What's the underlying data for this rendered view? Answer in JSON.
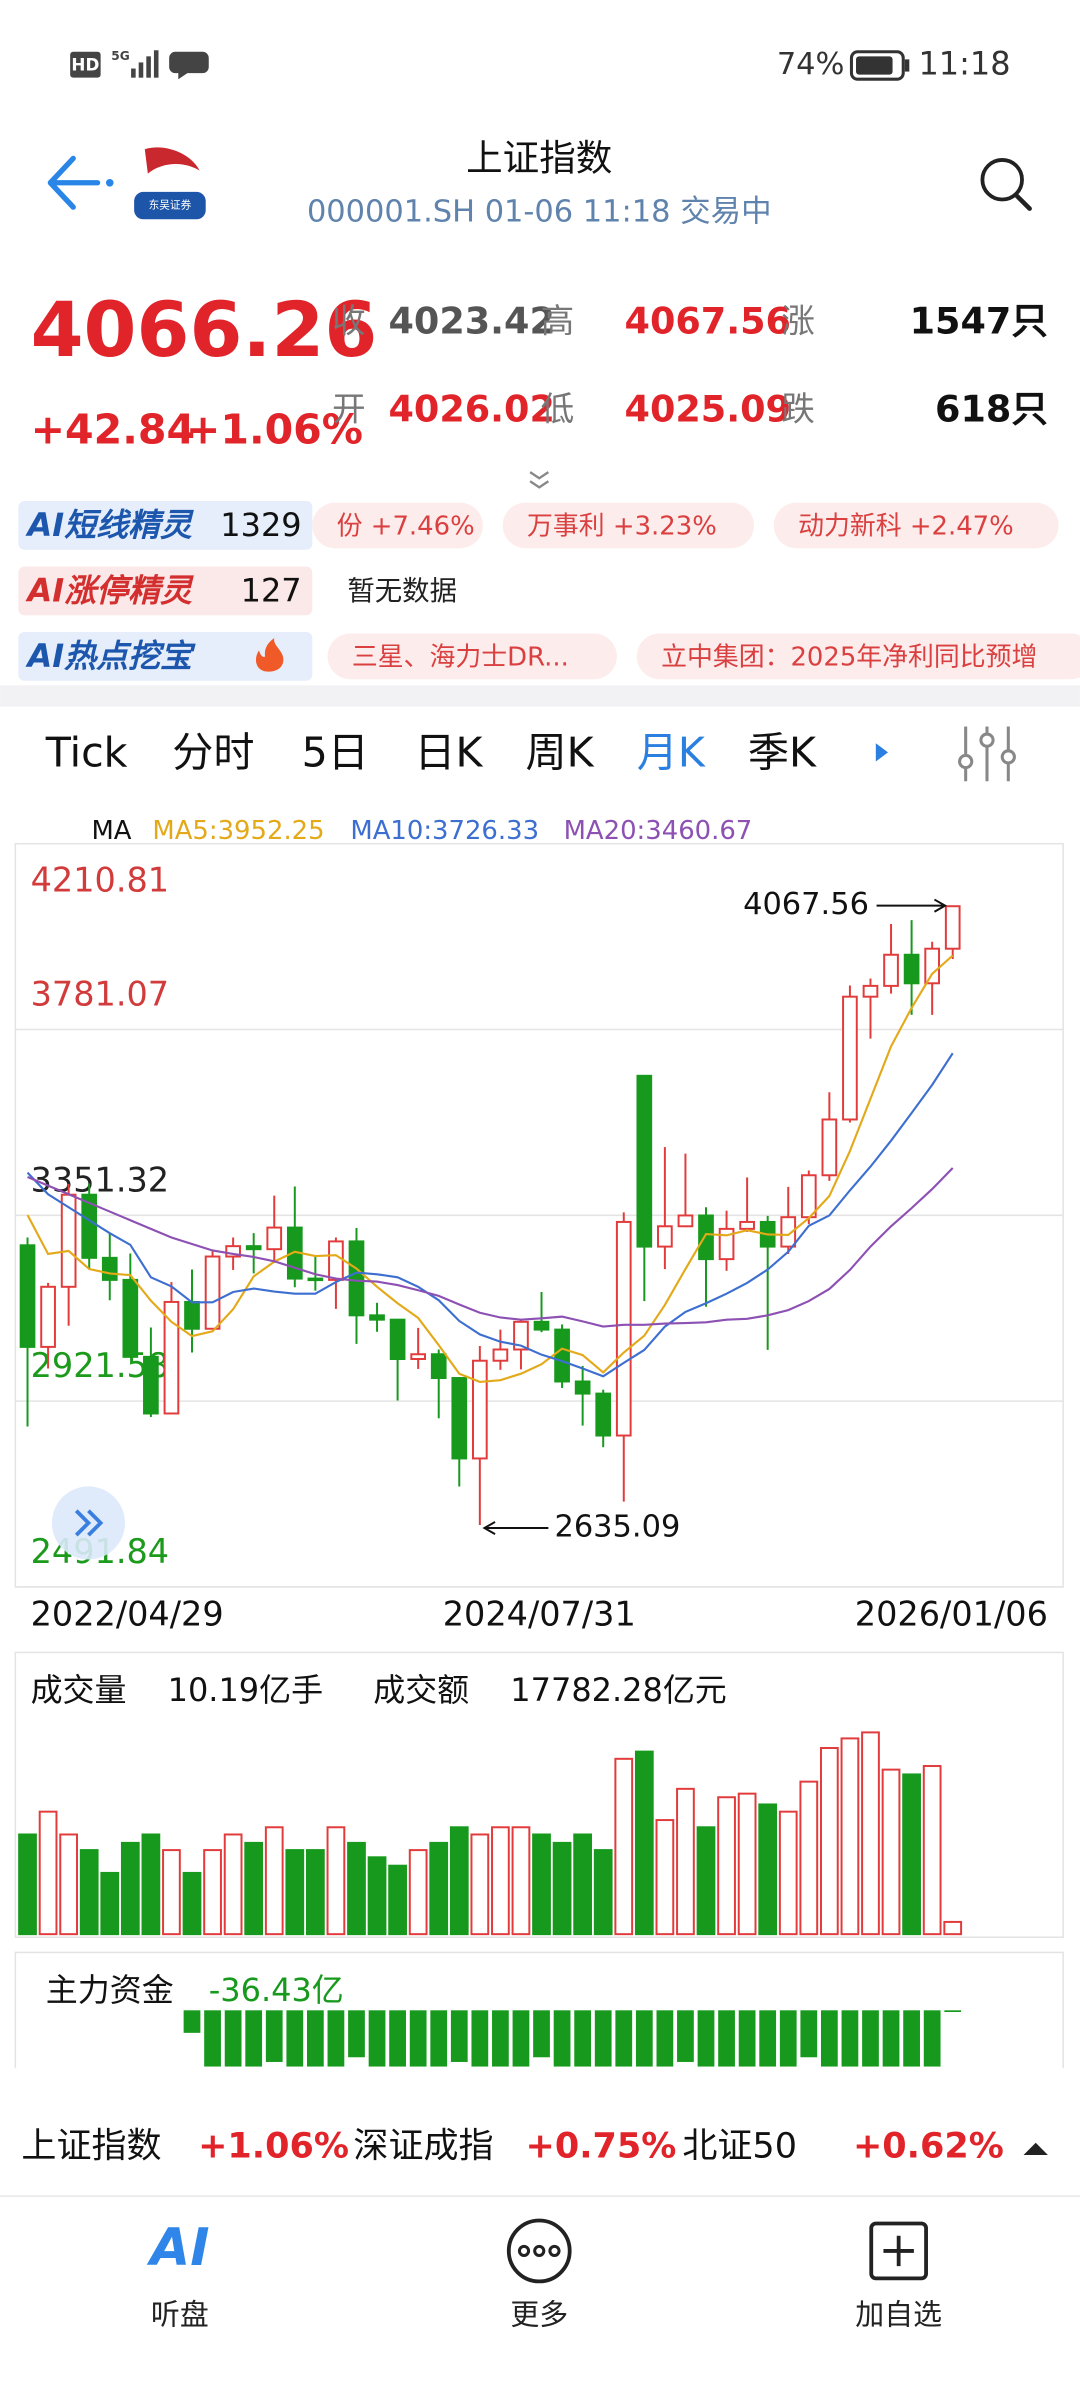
{
  "status_bar": {
    "left": "HD",
    "network": "5G",
    "battery": "74%",
    "time": "11:18"
  },
  "header": {
    "title": "上证指数",
    "subtitle": "000001.SH 01-06 11:18 交易中",
    "logo_text": "东吴证券"
  },
  "quote": {
    "price": "4066.26",
    "change": "+42.84",
    "change_pct": "+1.06%",
    "rows": [
      [
        {
          "label": "收",
          "value": "4023.42"
        },
        {
          "label": "高",
          "value": "4067.56"
        },
        {
          "label": "涨",
          "value": "1547只"
        }
      ],
      [
        {
          "label": "开",
          "value": "4026.02"
        },
        {
          "label": "低",
          "value": "4025.09"
        },
        {
          "label": "跌",
          "value": "618只"
        }
      ]
    ]
  },
  "ai_rows": [
    {
      "name": "AI短线精灵",
      "count": "1329",
      "items": [
        "份 +7.46%",
        "万事利 +3.23%",
        "动力新科 +2.47%"
      ]
    },
    {
      "name": "AI涨停精灵",
      "count": "127",
      "items": [
        "暂无数据"
      ]
    },
    {
      "name": "AI热点挖宝",
      "items": [
        "三星、海力士DR...",
        "立中集团：2025年净利同比预增"
      ]
    }
  ],
  "tabs": {
    "items": [
      "Tick",
      "分时",
      "5日",
      "日K",
      "周K",
      "月K",
      "季K"
    ],
    "active": 5
  },
  "chart_data": [
    {
      "type": "candlestick",
      "categories": [
        "2022/04/29",
        null,
        null,
        null,
        null,
        null,
        null,
        null,
        null,
        null,
        null,
        null,
        null,
        null,
        null,
        null,
        null,
        null,
        null,
        null,
        null,
        null,
        null,
        null,
        null,
        null,
        null,
        "2024/07/31",
        null,
        null,
        null,
        null,
        null,
        null,
        null,
        null,
        null,
        null,
        null,
        null,
        null,
        null,
        null,
        null,
        null,
        "2026/01/06"
      ],
      "open": [
        3282,
        3047,
        3186,
        3399,
        3253,
        3202,
        3024,
        2893,
        3151,
        3089,
        3256,
        3280,
        3273,
        3323,
        3205,
        3202,
        3291,
        3120,
        3110,
        3019,
        3030,
        2975,
        2789,
        3015,
        3041,
        3105,
        3087,
        2967,
        2939,
        2842,
        3674,
        3279,
        3326,
        3351,
        3250,
        3320,
        3336,
        3279,
        3347,
        3444,
        3573,
        3857,
        3882,
        3954,
        3888,
        3968
      ],
      "high": [
        3300,
        3195,
        3424,
        3425,
        3310,
        3263,
        3092,
        3197,
        3226,
        3270,
        3300,
        3310,
        3397,
        3418,
        3259,
        3300,
        3322,
        3149,
        3110,
        3091,
        3041,
        2977,
        3049,
        3087,
        3111,
        3174,
        3099,
        3003,
        2948,
        3358,
        3674,
        3509,
        3494,
        3370,
        3362,
        3439,
        3350,
        3417,
        3455,
        3636,
        3883,
        3899,
        4025,
        4034,
        3984,
        4067.56
      ],
      "low": [
        2863,
        2997,
        3096,
        3226,
        3155,
        3022,
        2885,
        2893,
        3034,
        3089,
        3225,
        3217,
        3241,
        3185,
        3177,
        3135,
        3054,
        3082,
        2923,
        2996,
        2882,
        2724,
        2635.09,
        2994,
        2995,
        3081,
        2952,
        2865,
        2815,
        2689,
        3153,
        3227,
        3324,
        3140,
        3223,
        3313,
        3040,
        3262,
        3331,
        3431,
        3566,
        3760,
        3864,
        3815,
        3815,
        3944
      ],
      "close": [
        3047,
        3186,
        3399,
        3253,
        3202,
        3024,
        2893,
        3151,
        3089,
        3256,
        3280,
        3273,
        3323,
        3205,
        3202,
        3291,
        3120,
        3110,
        3019,
        3030,
        2975,
        2789,
        3015,
        3041,
        3105,
        3087,
        2967,
        2939,
        2842,
        3336,
        3279,
        3326,
        3351,
        3250,
        3320,
        3336,
        3279,
        3347,
        3444,
        3573,
        3857,
        3882,
        3954,
        3888,
        3968,
        4066.26
      ],
      "up_color": "#e23b3b",
      "down_color": "#16991c",
      "ylim": [
        2491.84,
        4210.81
      ],
      "yticks": [
        4210.81,
        3781.07,
        3351.32,
        2921.58,
        2491.84
      ],
      "ytick_colors": [
        "#d23b3b",
        "#d23b3b",
        "#222222",
        "#1c9a1c",
        "#1c9a1c"
      ],
      "grid": true,
      "legend_title": "MA",
      "series": [
        {
          "name": "MA5:3952.25",
          "color": "#e3a919",
          "values": [
            3352,
            3262,
            3269,
            3227,
            3217,
            3213,
            3154,
            3105,
            3072,
            3083,
            3134,
            3210,
            3244,
            3267,
            3257,
            3259,
            3228,
            3186,
            3148,
            3114,
            3051,
            2985,
            2966,
            2970,
            2985,
            3007,
            3043,
            3028,
            2988,
            3034,
            3073,
            3144,
            3227,
            3308,
            3305,
            3317,
            3307,
            3306,
            3345,
            3396,
            3500,
            3621,
            3742,
            3831,
            3910,
            3952.25
          ]
        },
        {
          "name": "MA10:3726.33",
          "color": "#3d6fd0",
          "values": [
            3450,
            3400,
            3370,
            3340,
            3310,
            3283,
            3208,
            3187,
            3150,
            3150,
            3174,
            3182,
            3175,
            3170,
            3170,
            3197,
            3219,
            3215,
            3208,
            3186,
            3155,
            3107,
            3076,
            3059,
            3050,
            3029,
            3014,
            2997,
            2979,
            3010,
            3040,
            3094,
            3128,
            3148,
            3170,
            3195,
            3226,
            3267,
            3327,
            3351,
            3409,
            3464,
            3524,
            3588,
            3653,
            3726.33
          ]
        },
        {
          "name": "MA20:3460.67",
          "color": "#8d50b3",
          "values": [
            3440,
            3420,
            3400,
            3380,
            3360,
            3340,
            3320,
            3300,
            3285,
            3270,
            3262,
            3255,
            3245,
            3230,
            3215,
            3205,
            3200,
            3198,
            3190,
            3178,
            3165,
            3145,
            3126,
            3115,
            3110,
            3113,
            3117,
            3106,
            3094,
            3098,
            3098,
            3101,
            3102,
            3104,
            3110,
            3112,
            3120,
            3132,
            3153,
            3181,
            3225,
            3279,
            3326,
            3368,
            3412,
            3460.67
          ]
        }
      ],
      "annotations": [
        "4067.56",
        "2635.09"
      ]
    },
    {
      "type": "bar",
      "title": "成交量",
      "value_label": "10.19亿手",
      "amount_title": "成交额",
      "amount_label": "17782.28亿元",
      "values": [
        83,
        102,
        83,
        70,
        51,
        76,
        83,
        70,
        51,
        70,
        83,
        76,
        89,
        70,
        70,
        89,
        76,
        64,
        57,
        70,
        76,
        89,
        83,
        89,
        89,
        83,
        76,
        83,
        70,
        146,
        152,
        95,
        121,
        89,
        114,
        117,
        108,
        102,
        127,
        155,
        163,
        168,
        137,
        133,
        140,
        10.19
      ],
      "ylim": [
        0,
        175
      ]
    },
    {
      "type": "bar",
      "title": "主力资金",
      "value_label": "-36.43亿",
      "color": "#16991c",
      "values": [
        null,
        null,
        null,
        null,
        null,
        null,
        null,
        null,
        -480,
        -1200,
        -1200,
        -1200,
        -1100,
        -1200,
        -1200,
        -1200,
        -1000,
        -1200,
        -1200,
        -1200,
        -1200,
        -1100,
        -1200,
        -1200,
        -1200,
        -1000,
        -1200,
        -1200,
        -1200,
        -1200,
        -1200,
        -1200,
        -1100,
        -1200,
        -1200,
        -1200,
        -1200,
        -1200,
        -1000,
        -1200,
        -1200,
        -1200,
        -1200,
        -1200,
        -1200,
        -36.43
      ],
      "ylim": [
        -1200,
        0
      ]
    }
  ],
  "ticker": [
    {
      "name": "上证指数",
      "change": "+1.06%"
    },
    {
      "name": "深证成指",
      "change": "+0.75%"
    },
    {
      "name": "北证50",
      "change": "+0.62%"
    }
  ],
  "nav": [
    {
      "icon": "AI",
      "label": "听盘"
    },
    {
      "label": "更多"
    },
    {
      "label": "加自选"
    }
  ]
}
